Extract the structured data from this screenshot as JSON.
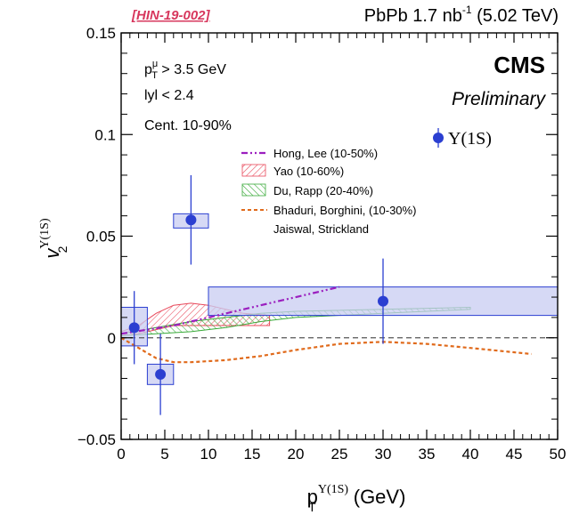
{
  "header": {
    "analysis_tag": "[HIN-19-002]",
    "run_info_prefix": "PbPb 1.7 nb",
    "run_info_exp": "-1",
    "run_info_suffix": " (5.02 TeV)"
  },
  "labels": {
    "experiment": "CMS",
    "status": "Preliminary",
    "cut_pt_prefix": "p",
    "cut_pt_sub": "T",
    "cut_pt_sup": "μ",
    "cut_pt_rest": " > 3.5 GeV",
    "cut_y": "lyl < 2.4",
    "cut_cent": "Cent. 10-90%"
  },
  "chart_data": {
    "type": "scatter",
    "xlabel": {
      "main": "p",
      "sub": "T",
      "sup": "Υ(1S)",
      "unit": " (GeV)"
    },
    "ylabel": {
      "main": "v",
      "sub": "2",
      "sup": "Υ(1S)"
    },
    "xlim": [
      0,
      50
    ],
    "ylim": [
      -0.05,
      0.15
    ],
    "xticks": [
      "0",
      "5",
      "10",
      "15",
      "20",
      "25",
      "30",
      "35",
      "40",
      "45",
      "50"
    ],
    "yticks": [
      "−0.05",
      "0",
      "0.05",
      "0.1",
      "0.15"
    ],
    "series": [
      {
        "name": "Υ(1S)",
        "color": "#2b3fd1",
        "points": [
          {
            "x": 1.5,
            "y": 0.005,
            "stat_err": 0.018,
            "syst_x": [
              0,
              3
            ],
            "syst_y": [
              -0.004,
              0.015
            ]
          },
          {
            "x": 4.5,
            "y": -0.018,
            "stat_err": 0.02,
            "syst_x": [
              3,
              6
            ],
            "syst_y": [
              -0.023,
              -0.013
            ]
          },
          {
            "x": 8.0,
            "y": 0.058,
            "stat_err": 0.022,
            "syst_x": [
              6,
              10
            ],
            "syst_y": [
              0.054,
              0.061
            ]
          },
          {
            "x": 30.0,
            "y": 0.018,
            "stat_err": 0.021,
            "syst_x": [
              10,
              50
            ],
            "syst_y": [
              0.011,
              0.025
            ]
          }
        ]
      }
    ],
    "theory_curves": [
      {
        "name": "Hong, Lee (10-50%)",
        "style": "dash-dot-dot",
        "color": "#9b1fbf",
        "points": [
          [
            0,
            0.002
          ],
          [
            3,
            0.004
          ],
          [
            6,
            0.006
          ],
          [
            10,
            0.01
          ],
          [
            14,
            0.014
          ],
          [
            18,
            0.018
          ],
          [
            22,
            0.022
          ],
          [
            25,
            0.025
          ]
        ]
      },
      {
        "name": "Yao (10-60%)",
        "style": "hatched-band",
        "color": "#e8485a",
        "upper": [
          [
            0,
            0.003
          ],
          [
            2,
            0.006
          ],
          [
            4,
            0.012
          ],
          [
            6,
            0.016
          ],
          [
            8,
            0.017
          ],
          [
            10,
            0.016
          ],
          [
            12,
            0.014
          ],
          [
            14,
            0.012
          ],
          [
            17,
            0.011
          ]
        ],
        "lower": [
          [
            0,
            0.001
          ],
          [
            2,
            0.002
          ],
          [
            4,
            0.004
          ],
          [
            6,
            0.006
          ],
          [
            8,
            0.006
          ],
          [
            10,
            0.006
          ],
          [
            12,
            0.006
          ],
          [
            14,
            0.006
          ],
          [
            17,
            0.006
          ]
        ]
      },
      {
        "name": "Du, Rapp (20-40%)",
        "style": "hatched-band",
        "color": "#3aaa3a",
        "upper": [
          [
            0,
            0.002
          ],
          [
            4,
            0.005
          ],
          [
            8,
            0.008
          ],
          [
            12,
            0.01
          ],
          [
            16,
            0.012
          ],
          [
            20,
            0.013
          ],
          [
            30,
            0.014
          ],
          [
            40,
            0.015
          ]
        ],
        "lower": [
          [
            0,
            0.001
          ],
          [
            4,
            0.002
          ],
          [
            8,
            0.003
          ],
          [
            12,
            0.005
          ],
          [
            16,
            0.008
          ],
          [
            20,
            0.01
          ],
          [
            30,
            0.012
          ],
          [
            40,
            0.014
          ]
        ]
      },
      {
        "name": "Bhaduri, Borghini, (10-30%)",
        "name_line2": "Jaiswal, Strickland",
        "style": "dashed",
        "color": "#e06a1b",
        "points": [
          [
            0,
            0.0
          ],
          [
            2,
            -0.005
          ],
          [
            4,
            -0.01
          ],
          [
            6,
            -0.012
          ],
          [
            8,
            -0.012
          ],
          [
            12,
            -0.011
          ],
          [
            16,
            -0.009
          ],
          [
            20,
            -0.006
          ],
          [
            25,
            -0.003
          ],
          [
            30,
            -0.002
          ],
          [
            35,
            -0.003
          ],
          [
            40,
            -0.005
          ],
          [
            47,
            -0.008
          ]
        ]
      }
    ],
    "reference_line": {
      "y": 0,
      "style": "dashed",
      "color": "#555555"
    },
    "legend_position": "top-right",
    "grid": false
  }
}
